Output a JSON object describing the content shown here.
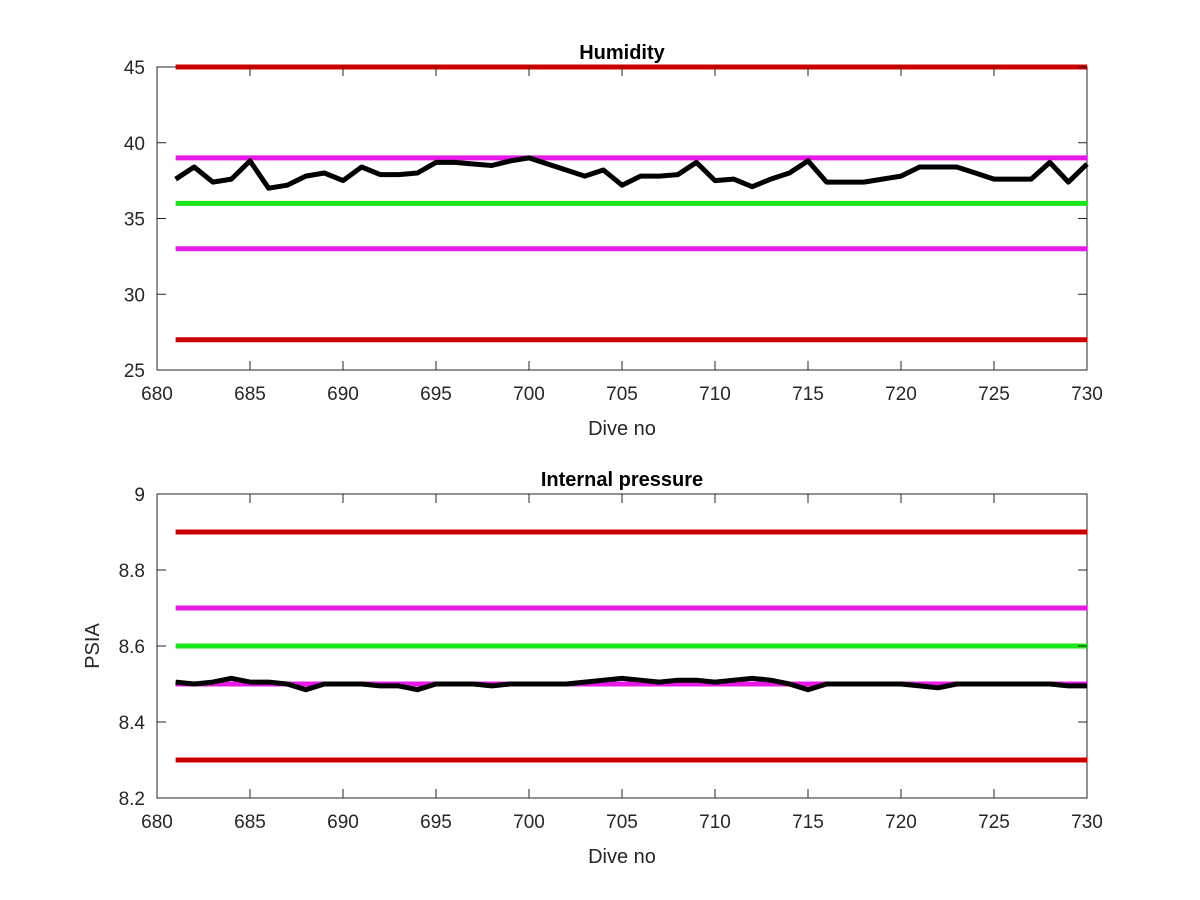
{
  "chart_data": [
    {
      "type": "line",
      "title": "Humidity",
      "xlabel": "Dive no",
      "ylabel": "",
      "xlim": [
        680,
        730
      ],
      "ylim": [
        25,
        45
      ],
      "xticks": [
        "680",
        "685",
        "690",
        "695",
        "700",
        "705",
        "710",
        "715",
        "720",
        "725",
        "730"
      ],
      "yticks": [
        "25",
        "30",
        "35",
        "40",
        "45"
      ],
      "grid": false,
      "reference_lines": [
        {
          "y": 45,
          "color": "#cc0000"
        },
        {
          "y": 39,
          "color": "#e619e6"
        },
        {
          "y": 36,
          "color": "#19e619"
        },
        {
          "y": 33,
          "color": "#e619e6"
        },
        {
          "y": 27,
          "color": "#cc0000"
        }
      ],
      "series": [
        {
          "color": "#000000",
          "x": [
            681,
            682,
            683,
            684,
            685,
            686,
            687,
            688,
            689,
            690,
            691,
            692,
            693,
            694,
            695,
            696,
            697,
            698,
            699,
            700,
            701,
            702,
            703,
            704,
            705,
            706,
            707,
            708,
            709,
            710,
            711,
            712,
            713,
            714,
            715,
            716,
            717,
            718,
            719,
            720,
            721,
            722,
            723,
            724,
            725,
            726,
            727,
            728,
            729,
            730
          ],
          "y": [
            37.6,
            38.4,
            37.4,
            37.6,
            38.8,
            37.0,
            37.2,
            37.8,
            38.0,
            37.5,
            38.4,
            37.9,
            37.9,
            38.0,
            38.7,
            38.7,
            38.6,
            38.5,
            38.8,
            39.0,
            38.6,
            38.2,
            37.8,
            38.2,
            37.2,
            37.8,
            37.8,
            37.9,
            38.7,
            37.5,
            37.6,
            37.1,
            37.6,
            38.0,
            38.8,
            37.4,
            37.4,
            37.4,
            37.6,
            37.8,
            38.4,
            38.4,
            38.4,
            38.0,
            37.6,
            37.6,
            37.6,
            38.7,
            37.4,
            38.6
          ]
        }
      ]
    },
    {
      "type": "line",
      "title": "Internal pressure",
      "xlabel": "Dive no",
      "ylabel": "PSIA",
      "xlim": [
        680,
        730
      ],
      "ylim": [
        8.2,
        9.0
      ],
      "xticks": [
        "680",
        "685",
        "690",
        "695",
        "700",
        "705",
        "710",
        "715",
        "720",
        "725",
        "730"
      ],
      "yticks": [
        "8.2",
        "8.4",
        "8.6",
        "8.8",
        "9"
      ],
      "grid": false,
      "reference_lines": [
        {
          "y": 8.9,
          "color": "#cc0000"
        },
        {
          "y": 8.7,
          "color": "#e619e6"
        },
        {
          "y": 8.6,
          "color": "#19e619"
        },
        {
          "y": 8.5,
          "color": "#e619e6"
        },
        {
          "y": 8.3,
          "color": "#cc0000"
        }
      ],
      "series": [
        {
          "color": "#000000",
          "x": [
            681,
            682,
            683,
            684,
            685,
            686,
            687,
            688,
            689,
            690,
            691,
            692,
            693,
            694,
            695,
            696,
            697,
            698,
            699,
            700,
            701,
            702,
            703,
            704,
            705,
            706,
            707,
            708,
            709,
            710,
            711,
            712,
            713,
            714,
            715,
            716,
            717,
            718,
            719,
            720,
            721,
            722,
            723,
            724,
            725,
            726,
            727,
            728,
            729,
            730
          ],
          "y": [
            8.505,
            8.5,
            8.505,
            8.515,
            8.505,
            8.505,
            8.5,
            8.485,
            8.5,
            8.5,
            8.5,
            8.495,
            8.495,
            8.485,
            8.5,
            8.5,
            8.5,
            8.495,
            8.5,
            8.5,
            8.5,
            8.5,
            8.505,
            8.51,
            8.515,
            8.51,
            8.505,
            8.51,
            8.51,
            8.505,
            8.51,
            8.515,
            8.51,
            8.5,
            8.485,
            8.5,
            8.5,
            8.5,
            8.5,
            8.5,
            8.495,
            8.49,
            8.5,
            8.5,
            8.5,
            8.5,
            8.5,
            8.5,
            8.495,
            8.495
          ]
        }
      ]
    }
  ]
}
